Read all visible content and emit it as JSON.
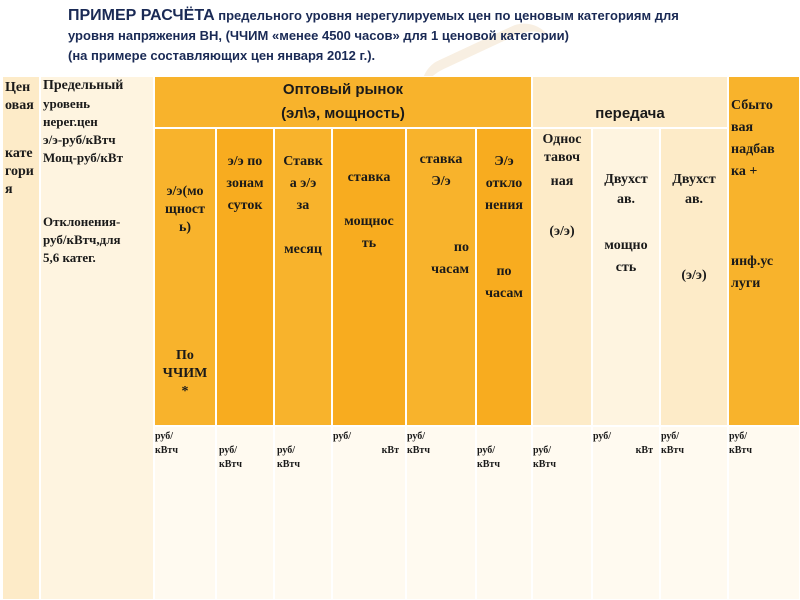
{
  "title": {
    "line1_bold": "ПРИМЕР РАСЧЁТА",
    "line1_rest": " предельного уровня нерегулируемых цен по ценовым категориям для",
    "line2": "уровня напряжения ВН, (ЧЧИМ «менее 4500 часов» для 1 ценовой категории)",
    "line3": "(на примере составляющих цен января 2012 г.)."
  },
  "table": {
    "col_price_category": {
      "l1": "Цен",
      "l2": "овая",
      "l3": "кате",
      "l4": "гори",
      "l5": "я"
    },
    "col_limit": {
      "l1": "Предельный",
      "l2": "уровень",
      "l3": "нерег.цен",
      "l4": "э/э-руб/кВтч",
      "l5": "Мощ-руб/кВт",
      "l6": "Отклонения-",
      "l7": "руб/кВтч,для",
      "l8": "5,6 катег."
    },
    "wholesale_header": {
      "l1": "Оптовый рынок",
      "l2": "(эл\\э, мощность)"
    },
    "transmission_header": "передача",
    "sales_header": {
      "l1": "Сбыто",
      "l2": "вая",
      "l3": "надбав",
      "l4": "ка +",
      "l5": "инф.ус",
      "l6": "луги"
    },
    "sub_ee_power": {
      "l1": "э/э(мо",
      "l2": "щност",
      "l3": "ь)",
      "l4": "По",
      "l5": "ЧЧИМ",
      "l6": "*"
    },
    "sub_ee_zones": {
      "l1": "э/э по",
      "l2": "зонам",
      "l3": "суток"
    },
    "sub_rate_month": {
      "l1": "Ставк",
      "l2": "а э/э",
      "l3": "за",
      "l4": "месяц"
    },
    "sub_rate_power": {
      "l1": "ставка",
      "l2": "мощнос",
      "l3": "ть"
    },
    "sub_rate_hours": {
      "l1": "ставка",
      "l2": "Э/э",
      "l3": "по",
      "l4": "часам"
    },
    "sub_deviation": {
      "l1": "Э/э",
      "l2": "откло",
      "l3": "нения",
      "l4": "по",
      "l5": "часам"
    },
    "sub_single_rate": {
      "l1": "Однос",
      "l2": "тавоч",
      "l3": "ная",
      "l4": "(э/э)"
    },
    "sub_two_rate_power": {
      "l1": "Двухст",
      "l2": "ав.",
      "l3": "мощно",
      "l4": "сть"
    },
    "sub_two_rate_ee": {
      "l1": "Двухст",
      "l2": "ав.",
      "l3": "(э/э)"
    },
    "units": {
      "u1": {
        "a": "руб/",
        "b": "кВтч"
      },
      "u2": {
        "a": "руб/",
        "b": "кВтч"
      },
      "u3": {
        "a": "руб/",
        "b": "кВтч"
      },
      "u4": {
        "a": "руб/",
        "b": "кВт"
      },
      "u5": {
        "a": "руб/",
        "b": "кВтч"
      },
      "u6": {
        "a": "руб/",
        "b": "кВтч"
      },
      "u7": {
        "a": "руб/",
        "b": "кВтч"
      },
      "u8": {
        "a": "руб/",
        "b": "кВт"
      },
      "u9": {
        "a": "руб/",
        "b": "кВтч"
      },
      "u10": {
        "a": "руб/",
        "b": "кВтч"
      }
    }
  },
  "colors": {
    "title": "#1a2a55",
    "orange": "#f8b32c",
    "light": "#fdebc8",
    "pale": "#fef4e0"
  }
}
